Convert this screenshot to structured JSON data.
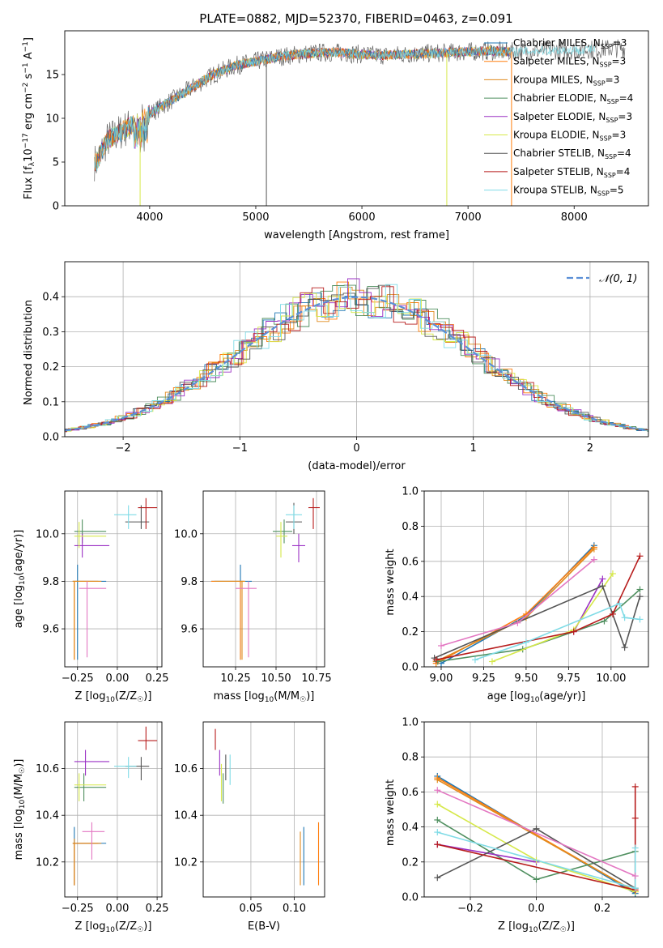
{
  "title": "PLATE=0882, MJD=52370, FIBERID=0463, z=0.091",
  "colors": {
    "Chabrier MILES": "#1f77b4",
    "Salpeter MILES": "#ff7f0e",
    "Kroupa MILES": "#e08a1e",
    "Chabrier ELODIE": "#4f8f5f",
    "Salpeter ELODIE": "#9b30c4",
    "Kroupa ELODIE": "#d6e84a",
    "Chabrier STELIB": "#555555",
    "Salpeter STELIB": "#b71c1c",
    "Kroupa STELIB": "#7fdbe6",
    "extra_pink": "#e377c2",
    "normal": "#5b8fd6"
  },
  "legend": [
    {
      "name": "Chabrier MILES",
      "sub": "3"
    },
    {
      "name": "Salpeter MILES",
      "sub": "3"
    },
    {
      "name": "Kroupa MILES",
      "sub": "3"
    },
    {
      "name": "Chabrier ELODIE",
      "sub": "4"
    },
    {
      "name": "Salpeter ELODIE",
      "sub": "3"
    },
    {
      "name": "Kroupa ELODIE",
      "sub": "3"
    },
    {
      "name": "Chabrier STELIB",
      "sub": "4"
    },
    {
      "name": "Salpeter STELIB",
      "sub": "4"
    },
    {
      "name": "Kroupa STELIB",
      "sub": "5"
    }
  ],
  "chart_data": [
    {
      "id": "spectrum",
      "type": "line",
      "xlabel": "wavelength [Angstrom, rest frame]",
      "ylabel": "Flux [f_λ10^-17 erg cm^-2 s^-1 A^-1]",
      "xlim": [
        3200,
        8700
      ],
      "ylim": [
        0,
        20
      ],
      "xticks": [
        4000,
        5000,
        6000,
        7000,
        8000
      ],
      "yticks": [
        0,
        5,
        10,
        15
      ],
      "x": [
        3500,
        3600,
        3800,
        4000,
        4200,
        4400,
        4600,
        4800,
        5000,
        5200,
        5400,
        5600,
        5800,
        6000,
        6200,
        6400,
        6600,
        6800,
        7000,
        7200,
        7400,
        7600,
        7800,
        8000,
        8200,
        8400
      ],
      "y": [
        5.0,
        7.5,
        9.0,
        10.5,
        12.0,
        13.5,
        15.0,
        16.0,
        16.5,
        17.0,
        17.3,
        17.5,
        17.5,
        17.3,
        17.2,
        17.3,
        17.4,
        17.5,
        17.6,
        17.7,
        17.6,
        17.7,
        17.8,
        17.8,
        17.9,
        18.0
      ]
    },
    {
      "id": "residuals",
      "type": "histogram",
      "xlabel": "(data-model)/error",
      "ylabel": "Normed distribution",
      "xlim": [
        -2.5,
        2.5
      ],
      "ylim": [
        0,
        0.5
      ],
      "xticks": [
        -2,
        -1,
        0,
        1,
        2
      ],
      "yticks": [
        0.0,
        0.1,
        0.2,
        0.3,
        0.4
      ],
      "legend": "𝒩(0, 1)"
    },
    {
      "id": "age_vs_Z",
      "type": "errorbar",
      "xlabel": "Z [log10(Z/Z☉)]",
      "ylabel": "age  [log10(age/yr)]",
      "xlim": [
        -0.33,
        0.28
      ],
      "ylim": [
        9.44,
        10.18
      ],
      "xticks": [
        -0.25,
        0.0,
        0.25
      ],
      "yticks": [
        9.6,
        9.8,
        10.0
      ],
      "points": [
        {
          "x": -0.25,
          "y": 9.8,
          "xe": [
            -0.28,
            -0.07
          ],
          "ye": [
            9.47,
            9.87
          ],
          "c": "Chabrier MILES"
        },
        {
          "x": -0.27,
          "y": 9.8,
          "xe": [
            -0.28,
            -0.12
          ],
          "ye": [
            9.47,
            9.8
          ],
          "c": "Salpeter MILES"
        },
        {
          "x": -0.27,
          "y": 9.8,
          "xe": [
            -0.28,
            -0.1
          ],
          "ye": [
            9.47,
            9.8
          ],
          "c": "Kroupa MILES"
        },
        {
          "x": -0.22,
          "y": 10.01,
          "xe": [
            -0.27,
            -0.07
          ],
          "ye": [
            9.96,
            10.06
          ],
          "c": "Chabrier ELODIE"
        },
        {
          "x": -0.22,
          "y": 9.95,
          "xe": [
            -0.27,
            -0.05
          ],
          "ye": [
            9.9,
            10.0
          ],
          "c": "Salpeter ELODIE"
        },
        {
          "x": -0.24,
          "y": 9.99,
          "xe": [
            -0.27,
            -0.07
          ],
          "ye": [
            9.94,
            10.05
          ],
          "c": "Kroupa ELODIE"
        },
        {
          "x": 0.15,
          "y": 10.05,
          "xe": [
            0.05,
            0.2
          ],
          "ye": [
            10.02,
            10.12
          ],
          "c": "Chabrier STELIB"
        },
        {
          "x": 0.18,
          "y": 10.11,
          "xe": [
            0.13,
            0.25
          ],
          "ye": [
            10.02,
            10.15
          ],
          "c": "Salpeter STELIB"
        },
        {
          "x": 0.07,
          "y": 10.08,
          "xe": [
            -0.02,
            0.12
          ],
          "ye": [
            10.02,
            10.12
          ],
          "c": "Kroupa STELIB"
        },
        {
          "x": -0.19,
          "y": 9.77,
          "xe": [
            -0.24,
            -0.07
          ],
          "ye": [
            9.48,
            9.8
          ],
          "c": "extra_pink"
        }
      ]
    },
    {
      "id": "age_vs_mass",
      "type": "errorbar",
      "xlabel": "mass [log10(M/M☉)]",
      "ylabel": "",
      "xlim": [
        10.05,
        10.8
      ],
      "ylim": [
        9.44,
        10.18
      ],
      "xticks": [
        10.25,
        10.5,
        10.75
      ],
      "yticks": [
        9.6,
        9.8,
        10.0
      ],
      "points": [
        {
          "x": 10.28,
          "y": 9.8,
          "xe": [
            10.1,
            10.35
          ],
          "ye": [
            9.47,
            9.87
          ],
          "c": "Chabrier MILES"
        },
        {
          "x": 10.28,
          "y": 9.8,
          "xe": [
            10.1,
            10.3
          ],
          "ye": [
            9.47,
            9.8
          ],
          "c": "Salpeter MILES"
        },
        {
          "x": 10.29,
          "y": 9.8,
          "xe": [
            10.12,
            10.31
          ],
          "ye": [
            9.47,
            9.8
          ],
          "c": "Kroupa MILES"
        },
        {
          "x": 10.55,
          "y": 10.01,
          "xe": [
            10.48,
            10.6
          ],
          "ye": [
            9.96,
            10.06
          ],
          "c": "Chabrier ELODIE"
        },
        {
          "x": 10.64,
          "y": 9.95,
          "xe": [
            10.6,
            10.68
          ],
          "ye": [
            9.88,
            10.0
          ],
          "c": "Salpeter ELODIE"
        },
        {
          "x": 10.53,
          "y": 9.99,
          "xe": [
            10.5,
            10.57
          ],
          "ye": [
            9.9,
            10.05
          ],
          "c": "Kroupa ELODIE"
        },
        {
          "x": 10.61,
          "y": 10.05,
          "xe": [
            10.56,
            10.66
          ],
          "ye": [
            10.0,
            10.13
          ],
          "c": "Chabrier STELIB"
        },
        {
          "x": 10.73,
          "y": 10.11,
          "xe": [
            10.7,
            10.77
          ],
          "ye": [
            10.02,
            10.15
          ],
          "c": "Salpeter STELIB"
        },
        {
          "x": 10.61,
          "y": 10.08,
          "xe": [
            10.56,
            10.66
          ],
          "ye": [
            10.02,
            10.12
          ],
          "c": "Kroupa STELIB"
        },
        {
          "x": 10.33,
          "y": 9.77,
          "xe": [
            10.25,
            10.38
          ],
          "ye": [
            9.48,
            9.8
          ],
          "c": "extra_pink"
        }
      ]
    },
    {
      "id": "weight_vs_age",
      "type": "line",
      "xlabel": "age  [log10(age/yr)]",
      "ylabel": "mass weight",
      "xlim": [
        8.9,
        10.22
      ],
      "ylim": [
        0,
        1
      ],
      "xticks": [
        9.0,
        9.25,
        9.5,
        9.75,
        10.0
      ],
      "yticks": [
        0.0,
        0.2,
        0.4,
        0.6,
        0.8,
        1.0
      ],
      "series": [
        {
          "c": "Chabrier MILES",
          "x": [
            9.0,
            9.5,
            9.9
          ],
          "y": [
            0.02,
            0.29,
            0.69
          ]
        },
        {
          "c": "Salpeter MILES",
          "x": [
            8.97,
            9.5,
            9.9
          ],
          "y": [
            0.02,
            0.3,
            0.68
          ]
        },
        {
          "c": "Kroupa MILES",
          "x": [
            8.97,
            9.5,
            9.9
          ],
          "y": [
            0.03,
            0.28,
            0.67
          ]
        },
        {
          "c": "Chabrier ELODIE",
          "x": [
            8.98,
            9.48,
            9.96,
            10.17
          ],
          "y": [
            0.03,
            0.1,
            0.26,
            0.44
          ]
        },
        {
          "c": "Salpeter ELODIE",
          "x": [
            9.78,
            9.95
          ],
          "y": [
            0.2,
            0.5
          ]
        },
        {
          "c": "Kroupa ELODIE",
          "x": [
            9.3,
            9.78,
            10.01
          ],
          "y": [
            0.03,
            0.21,
            0.53
          ]
        },
        {
          "c": "Chabrier STELIB",
          "x": [
            8.96,
            9.95,
            10.08,
            10.17
          ],
          "y": [
            0.05,
            0.46,
            0.11,
            0.4
          ]
        },
        {
          "c": "Salpeter STELIB",
          "x": [
            8.97,
            9.78,
            10.01,
            10.17
          ],
          "y": [
            0.04,
            0.2,
            0.3,
            0.63
          ]
        },
        {
          "c": "Kroupa STELIB",
          "x": [
            9.2,
            9.5,
            10.05,
            10.08,
            10.17
          ],
          "y": [
            0.04,
            0.14,
            0.36,
            0.28,
            0.27
          ]
        },
        {
          "c": "extra_pink",
          "x": [
            9.0,
            9.45,
            9.9
          ],
          "y": [
            0.12,
            0.25,
            0.61
          ]
        }
      ]
    },
    {
      "id": "mass_vs_Z",
      "type": "errorbar",
      "xlabel": "Z [log10(Z/Z☉)]",
      "ylabel": "mass [log10(M/M☉)]",
      "xlim": [
        -0.33,
        0.28
      ],
      "ylim": [
        10.05,
        10.8
      ],
      "xticks": [
        -0.25,
        0.0,
        0.25
      ],
      "yticks": [
        10.2,
        10.4,
        10.6
      ],
      "points": [
        {
          "x": -0.27,
          "y": 10.28,
          "xe": [
            -0.28,
            -0.07
          ],
          "ye": [
            10.1,
            10.35
          ],
          "c": "Chabrier MILES"
        },
        {
          "x": -0.27,
          "y": 10.28,
          "xe": [
            -0.28,
            -0.12
          ],
          "ye": [
            10.1,
            10.28
          ],
          "c": "Salpeter MILES"
        },
        {
          "x": -0.27,
          "y": 10.28,
          "xe": [
            -0.28,
            -0.1
          ],
          "ye": [
            10.1,
            10.3
          ],
          "c": "Kroupa MILES"
        },
        {
          "x": -0.21,
          "y": 10.52,
          "xe": [
            -0.27,
            -0.07
          ],
          "ye": [
            10.46,
            10.58
          ],
          "c": "Chabrier ELODIE"
        },
        {
          "x": -0.2,
          "y": 10.63,
          "xe": [
            -0.27,
            -0.05
          ],
          "ye": [
            10.57,
            10.68
          ],
          "c": "Salpeter ELODIE"
        },
        {
          "x": -0.24,
          "y": 10.53,
          "xe": [
            -0.27,
            -0.07
          ],
          "ye": [
            10.46,
            10.58
          ],
          "c": "Kroupa ELODIE"
        },
        {
          "x": 0.15,
          "y": 10.61,
          "xe": [
            0.05,
            0.2
          ],
          "ye": [
            10.55,
            10.65
          ],
          "c": "Chabrier STELIB"
        },
        {
          "x": 0.18,
          "y": 10.72,
          "xe": [
            0.13,
            0.25
          ],
          "ye": [
            10.68,
            10.78
          ],
          "c": "Salpeter STELIB"
        },
        {
          "x": 0.07,
          "y": 10.61,
          "xe": [
            -0.02,
            0.12
          ],
          "ye": [
            10.56,
            10.65
          ],
          "c": "Kroupa STELIB"
        },
        {
          "x": -0.16,
          "y": 10.33,
          "xe": [
            -0.22,
            -0.08
          ],
          "ye": [
            10.21,
            10.37
          ],
          "c": "extra_pink"
        }
      ]
    },
    {
      "id": "mass_vs_ebv",
      "type": "errorbar",
      "xlabel": "E(B-V)",
      "ylabel": "",
      "xlim": [
        -0.005,
        0.135
      ],
      "ylim": [
        10.05,
        10.8
      ],
      "xticks": [
        0.05,
        0.1
      ],
      "yticks": [
        10.2,
        10.4,
        10.6
      ],
      "points": [
        {
          "x": 0.111,
          "y": 10.28,
          "ye": [
            10.1,
            10.35
          ],
          "c": "Chabrier MILES"
        },
        {
          "x": 0.128,
          "y": 10.28,
          "ye": [
            10.1,
            10.37
          ],
          "c": "Salpeter MILES"
        },
        {
          "x": 0.107,
          "y": 10.28,
          "ye": [
            10.1,
            10.33
          ],
          "c": "Kroupa MILES"
        },
        {
          "x": 0.018,
          "y": 10.53,
          "ye": [
            10.45,
            10.58
          ],
          "c": "Chabrier ELODIE"
        },
        {
          "x": 0.014,
          "y": 10.63,
          "ye": [
            10.57,
            10.68
          ],
          "c": "Salpeter ELODIE"
        },
        {
          "x": 0.016,
          "y": 10.53,
          "ye": [
            10.46,
            10.62
          ],
          "c": "Kroupa ELODIE"
        },
        {
          "x": 0.021,
          "y": 10.61,
          "ye": [
            10.55,
            10.66
          ],
          "c": "Chabrier STELIB"
        },
        {
          "x": 0.009,
          "y": 10.72,
          "ye": [
            10.68,
            10.77
          ],
          "c": "Salpeter STELIB"
        },
        {
          "x": 0.026,
          "y": 10.61,
          "ye": [
            10.53,
            10.66
          ],
          "c": "Kroupa STELIB"
        }
      ]
    },
    {
      "id": "weight_vs_Z",
      "type": "line",
      "xlabel": "Z [log10(Z/Z☉)]",
      "ylabel": "mass weight",
      "xlim": [
        -0.34,
        0.34
      ],
      "ylim": [
        0,
        1
      ],
      "xticks": [
        -0.2,
        0.0,
        0.2
      ],
      "yticks": [
        0.0,
        0.2,
        0.4,
        0.6,
        0.8,
        1.0
      ],
      "series": [
        {
          "c": "Chabrier MILES",
          "x": [
            -0.3,
            0.3
          ],
          "y": [
            0.69,
            0.02
          ]
        },
        {
          "c": "Salpeter MILES",
          "x": [
            -0.3,
            0.3
          ],
          "y": [
            0.68,
            0.03
          ]
        },
        {
          "c": "Kroupa MILES",
          "x": [
            -0.3,
            0.3
          ],
          "y": [
            0.67,
            0.03
          ]
        },
        {
          "c": "Chabrier ELODIE",
          "x": [
            -0.3,
            0.0,
            0.3
          ],
          "y": [
            0.44,
            0.1,
            0.26
          ]
        },
        {
          "c": "Salpeter ELODIE",
          "x": [
            -0.3,
            0.0
          ],
          "y": [
            0.3,
            0.2
          ]
        },
        {
          "c": "Kroupa ELODIE",
          "x": [
            -0.3,
            0.0,
            0.3
          ],
          "y": [
            0.53,
            0.21,
            0.03
          ]
        },
        {
          "c": "Chabrier STELIB",
          "x": [
            -0.3,
            0.0,
            0.3
          ],
          "y": [
            0.11,
            0.39,
            0.05
          ]
        },
        {
          "c": "Salpeter STELIB",
          "x": [
            -0.3,
            0.3,
            0.3,
            0.3
          ],
          "y": [
            0.3,
            0.04,
            0.45,
            0.63
          ]
        },
        {
          "c": "Kroupa STELIB",
          "x": [
            -0.3,
            0.3,
            0.3
          ],
          "y": [
            0.37,
            0.05,
            0.28
          ]
        },
        {
          "c": "extra_pink",
          "x": [
            -0.3,
            0.3
          ],
          "y": [
            0.61,
            0.12
          ]
        }
      ]
    }
  ]
}
